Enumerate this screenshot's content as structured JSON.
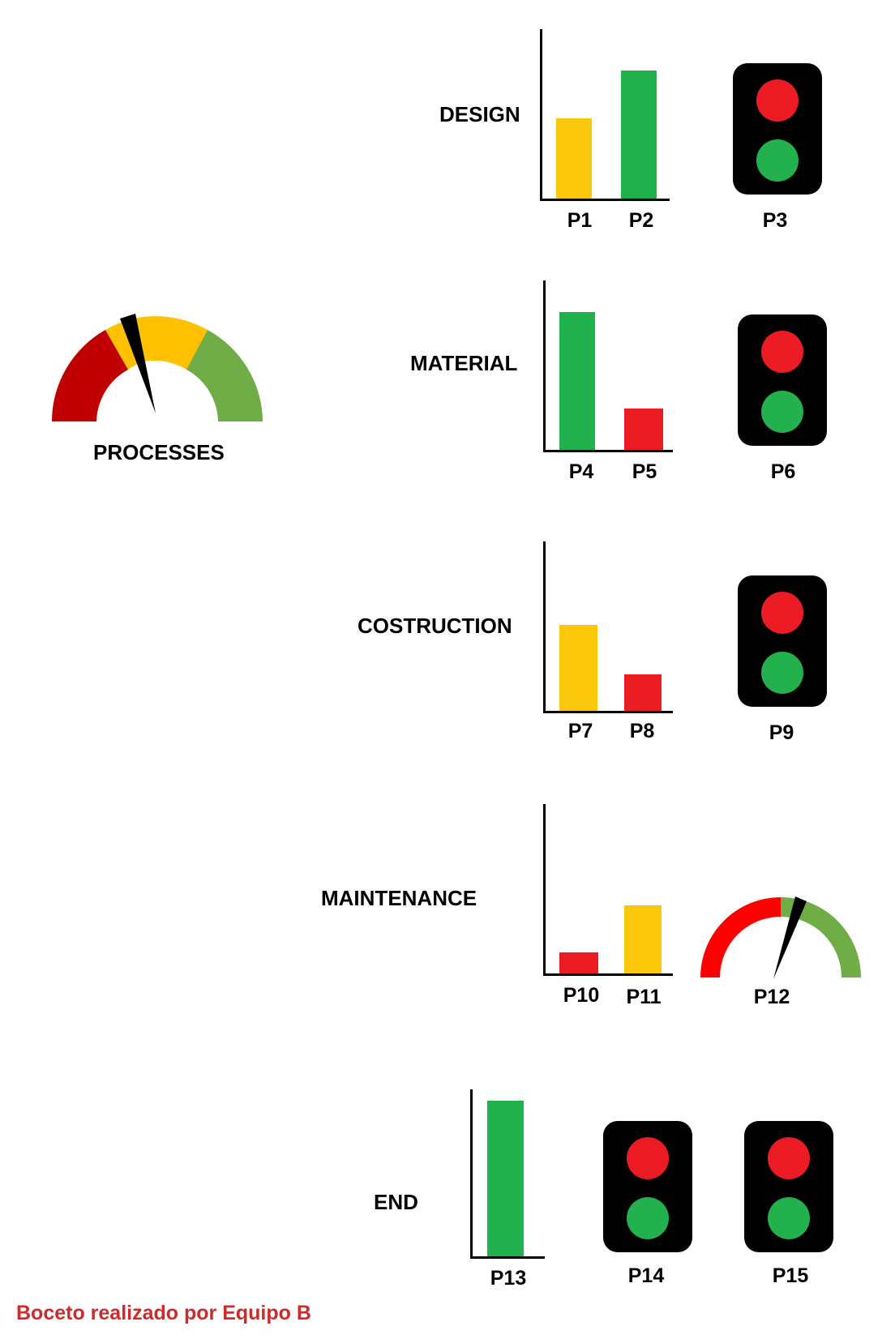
{
  "colors": {
    "yellow": "#fcc70a",
    "green": "#21b14c",
    "red": "#ec1c24",
    "gauge_dark_red": "#c00000",
    "gauge_yellow": "#ffc000",
    "gauge_green": "#70ad47",
    "gauge2_red": "#ff0000",
    "lamp_red": "#ed1c24",
    "lamp_green": "#22b14c",
    "housing": "#000000",
    "footer": "#cc2b2b"
  },
  "processes_gauge": {
    "label": "PROCESSES",
    "segments": [
      "red",
      "yellow",
      "yellow",
      "green"
    ],
    "needle_level": 0.42
  },
  "sections": [
    {
      "title": "DESIGN",
      "bars": [
        {
          "label": "P1",
          "value": 0.55,
          "color": "yellow"
        },
        {
          "label": "P2",
          "value": 0.88,
          "color": "green"
        }
      ],
      "indicator": {
        "type": "traffic-light",
        "label": "P3",
        "lamps": [
          "red",
          "green"
        ]
      }
    },
    {
      "title": "MATERIAL",
      "bars": [
        {
          "label": "P4",
          "value": 0.83,
          "color": "green"
        },
        {
          "label": "P5",
          "value": 0.25,
          "color": "red"
        }
      ],
      "indicator": {
        "type": "traffic-light",
        "label": "P6",
        "lamps": [
          "red",
          "green"
        ]
      }
    },
    {
      "title": "COSTRUCTION",
      "bars": [
        {
          "label": "P7",
          "value": 0.52,
          "color": "yellow"
        },
        {
          "label": "P8",
          "value": 0.22,
          "color": "red"
        }
      ],
      "indicator": {
        "type": "traffic-light",
        "label": "P9",
        "lamps": [
          "red",
          "green"
        ]
      }
    },
    {
      "title": "MAINTENANCE",
      "bars": [
        {
          "label": "P10",
          "value": 0.13,
          "color": "red"
        },
        {
          "label": "P11",
          "value": 0.41,
          "color": "yellow"
        }
      ],
      "indicator": {
        "type": "gauge",
        "label": "P12",
        "segments": [
          "red",
          "green"
        ],
        "needle_level": 0.56
      }
    },
    {
      "title": "END",
      "bars": [
        {
          "label": "P13",
          "value": 0.94,
          "color": "green"
        }
      ],
      "indicators": [
        {
          "type": "traffic-light",
          "label": "P14",
          "lamps": [
            "red",
            "green"
          ]
        },
        {
          "type": "traffic-light",
          "label": "P15",
          "lamps": [
            "red",
            "green"
          ]
        }
      ]
    }
  ],
  "footer": "Boceto realizado por Equipo B"
}
